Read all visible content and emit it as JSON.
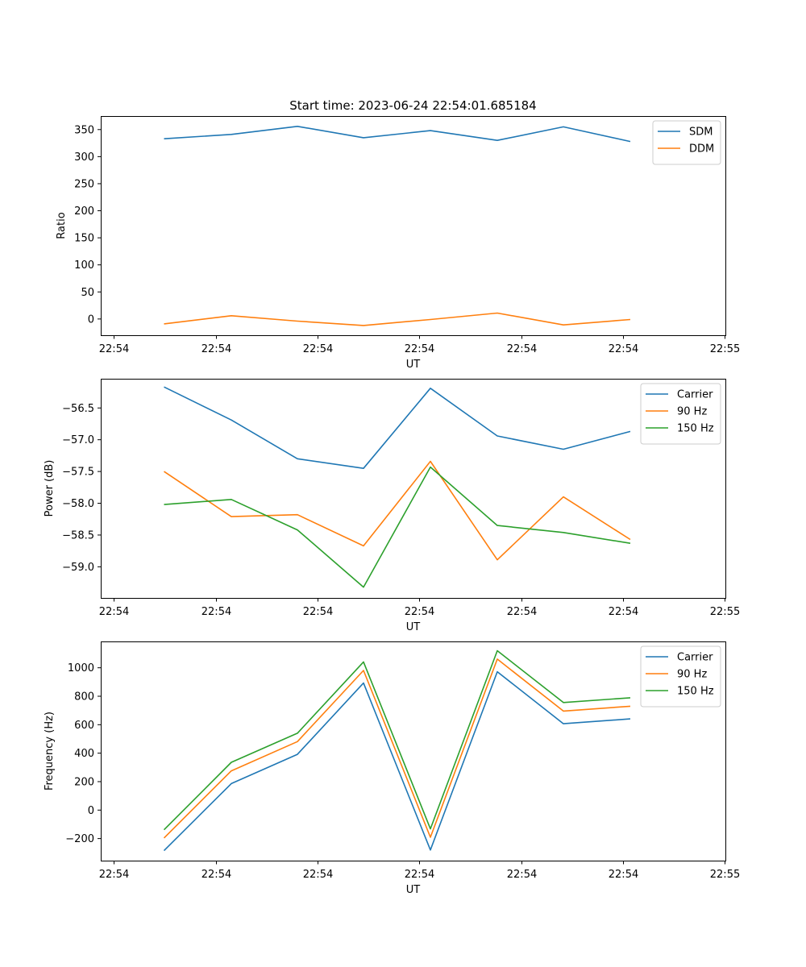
{
  "chart_data": [
    {
      "type": "line",
      "title": "Start time: 2023-06-24 22:54:01.685184",
      "xlabel": "UT",
      "ylabel": "Ratio",
      "x_ticks": [
        "22:54",
        "22:54",
        "22:54",
        "22:54",
        "22:54",
        "22:54",
        "22:55"
      ],
      "y_ticks": [
        0,
        50,
        100,
        150,
        200,
        250,
        300,
        350
      ],
      "ylim": [
        -30,
        375
      ],
      "grid": false,
      "legend_position": "upper right",
      "series": [
        {
          "name": "SDM",
          "color": "#1f77b4",
          "values": [
            333,
            341,
            356,
            335,
            348,
            330,
            355,
            328
          ]
        },
        {
          "name": "DDM",
          "color": "#ff7f0e",
          "values": [
            -9,
            6,
            -4,
            -12,
            -1,
            11,
            -11,
            -1
          ]
        }
      ]
    },
    {
      "type": "line",
      "title": "",
      "xlabel": "UT",
      "ylabel": "Power (dB)",
      "x_ticks": [
        "22:54",
        "22:54",
        "22:54",
        "22:54",
        "22:54",
        "22:54",
        "22:55"
      ],
      "y_ticks": [
        -56.5,
        -57.0,
        -57.5,
        -58.0,
        -58.5,
        -59.0
      ],
      "y_tick_labels": [
        "−56.5",
        "−57.0",
        "−57.5",
        "−58.0",
        "−58.5",
        "−59.0"
      ],
      "ylim": [
        -59.49,
        -56.04
      ],
      "grid": false,
      "legend_position": "upper right",
      "series": [
        {
          "name": "Carrier",
          "color": "#1f77b4",
          "values": [
            -56.17,
            -56.69,
            -57.3,
            -57.45,
            -56.19,
            -56.94,
            -57.15,
            -56.87
          ]
        },
        {
          "name": "90 Hz",
          "color": "#ff7f0e",
          "values": [
            -57.5,
            -58.21,
            -58.18,
            -58.67,
            -57.34,
            -58.89,
            -57.9,
            -58.57
          ]
        },
        {
          "name": "150 Hz",
          "color": "#2ca02c",
          "values": [
            -58.02,
            -57.94,
            -58.42,
            -59.32,
            -57.43,
            -58.35,
            -58.46,
            -58.63
          ]
        }
      ]
    },
    {
      "type": "line",
      "title": "",
      "xlabel": "UT",
      "ylabel": "Frequency (Hz)",
      "x_ticks": [
        "22:54",
        "22:54",
        "22:54",
        "22:54",
        "22:54",
        "22:54",
        "22:55"
      ],
      "y_ticks": [
        -200,
        0,
        200,
        400,
        600,
        800,
        1000
      ],
      "y_tick_labels": [
        "−200",
        "0",
        "200",
        "400",
        "600",
        "800",
        "1000"
      ],
      "ylim": [
        -355,
        1185
      ],
      "grid": false,
      "legend_position": "upper right",
      "series": [
        {
          "name": "Carrier",
          "color": "#1f77b4",
          "values": [
            -285,
            186,
            392,
            893,
            -280,
            972,
            607,
            641
          ]
        },
        {
          "name": "90 Hz",
          "color": "#ff7f0e",
          "values": [
            -196,
            276,
            481,
            981,
            -191,
            1061,
            696,
            730
          ]
        },
        {
          "name": "150 Hz",
          "color": "#2ca02c",
          "values": [
            -138,
            336,
            540,
            1041,
            -132,
            1120,
            756,
            789
          ]
        }
      ]
    }
  ]
}
